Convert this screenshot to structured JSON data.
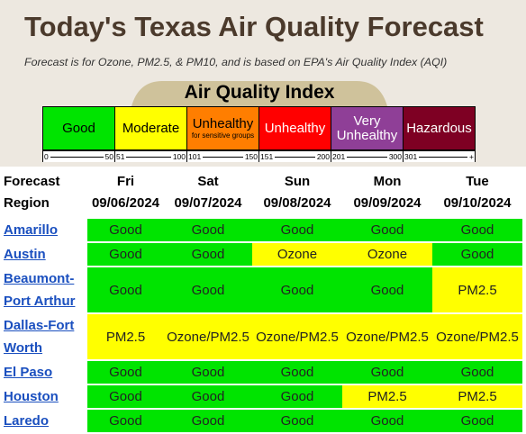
{
  "header": {
    "title": "Today's Texas Air Quality Forecast",
    "subtitle": "Forecast is for Ozone, PM2.5, & PM10, and is based on EPA's Air Quality Index (AQI)"
  },
  "aqi": {
    "title": "Air Quality Index",
    "levels": [
      {
        "label": "Good",
        "low": "0",
        "high": "50",
        "color": "#00e400",
        "text_color": "#000"
      },
      {
        "label": "Moderate",
        "low": "51",
        "high": "100",
        "color": "#ffff00",
        "text_color": "#000"
      },
      {
        "label": "Unhealthy",
        "sublabel": "for sensitive groups",
        "low": "101",
        "high": "150",
        "color": "#ff7e00",
        "text_color": "#000"
      },
      {
        "label": "Unhealthy",
        "low": "151",
        "high": "200",
        "color": "#ff0000",
        "text_color": "#fff"
      },
      {
        "label": "Very Unhealthy",
        "low": "201",
        "high": "300",
        "color": "#8f3f97",
        "text_color": "#fff"
      },
      {
        "label": "Hazardous",
        "low": "301",
        "high": "+",
        "color": "#7e0023",
        "text_color": "#fff"
      }
    ]
  },
  "table": {
    "region_header": "Forecast Region",
    "columns": [
      {
        "day": "Fri",
        "date": "09/06/2024"
      },
      {
        "day": "Sat",
        "date": "09/07/2024"
      },
      {
        "day": "Sun",
        "date": "09/08/2024"
      },
      {
        "day": "Mon",
        "date": "09/09/2024"
      },
      {
        "day": "Tue",
        "date": "09/10/2024"
      }
    ],
    "rows": [
      {
        "region": "Amarillo",
        "cells": [
          "Good",
          "Good",
          "Good",
          "Good",
          "Good"
        ]
      },
      {
        "region": "Austin",
        "cells": [
          "Good",
          "Good",
          "Ozone",
          "Ozone",
          "Good"
        ]
      },
      {
        "region": "Beaumont-Port Arthur",
        "cells": [
          "Good",
          "Good",
          "Good",
          "Good",
          "PM2.5"
        ]
      },
      {
        "region": "Dallas-Fort Worth",
        "cells": [
          "PM2.5",
          "Ozone/PM2.5",
          "Ozone/PM2.5",
          "Ozone/PM2.5",
          "Ozone/PM2.5"
        ]
      },
      {
        "region": "El Paso",
        "cells": [
          "Good",
          "Good",
          "Good",
          "Good",
          "Good"
        ]
      },
      {
        "region": "Houston",
        "cells": [
          "Good",
          "Good",
          "Good",
          "PM2.5",
          "PM2.5"
        ]
      },
      {
        "region": "Laredo",
        "cells": [
          "Good",
          "Good",
          "Good",
          "Good",
          "Good"
        ]
      }
    ]
  }
}
